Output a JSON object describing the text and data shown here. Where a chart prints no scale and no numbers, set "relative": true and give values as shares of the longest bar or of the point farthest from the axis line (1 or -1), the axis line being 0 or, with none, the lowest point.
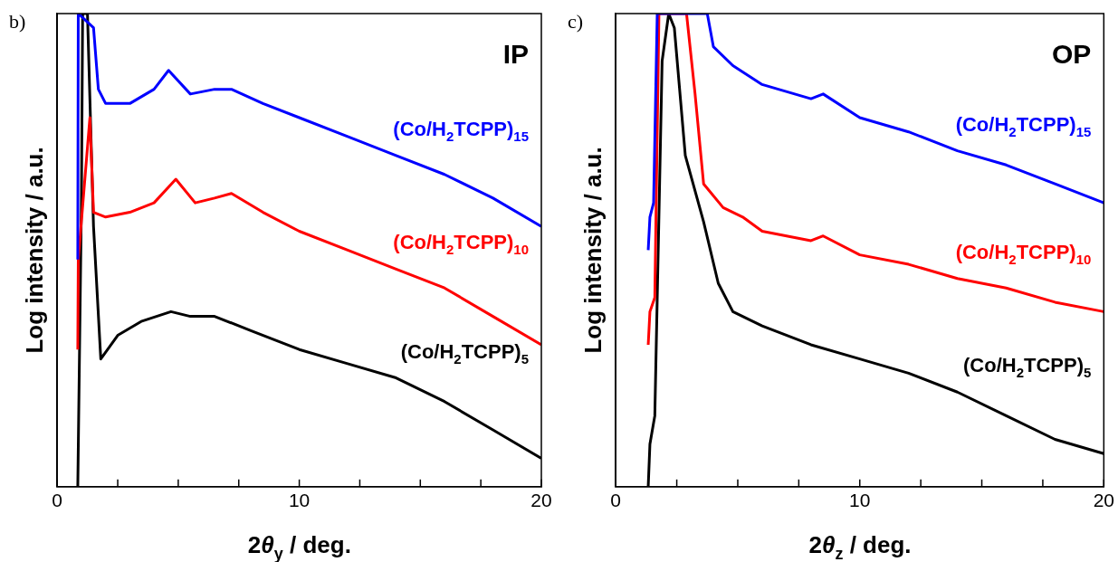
{
  "chart_data": [
    {
      "type": "line",
      "title": "IP",
      "annotations": [
        "b)"
      ],
      "xlabel": "2θ$_{y}$ / deg.",
      "ylabel": "Log intensity / a.u.",
      "relative": true,
      "xlim": [
        0,
        20
      ],
      "xticks": [
        0,
        {
          "value": 2.5,
          "label": null
        },
        {
          "value": 5,
          "label": null
        },
        {
          "value": 7.5,
          "label": null
        },
        10,
        {
          "value": 12.5,
          "label": null
        },
        {
          "value": 15,
          "label": null
        },
        {
          "value": 17.5,
          "label": null
        },
        20
      ],
      "series": [
        {
          "name": "(Co/H$_{2}$TCPP)$_{15}$",
          "color": "#0000ff",
          "x": [
            0.85,
            0.87,
            1.5,
            1.7,
            2,
            3,
            4,
            4.6,
            5.5,
            6.5,
            7.2,
            8.5,
            10,
            12,
            14,
            16,
            18,
            20
          ],
          "values": [
            0.48,
            1,
            0.97,
            0.84,
            0.81,
            0.81,
            0.84,
            0.88,
            0.83,
            0.84,
            0.84,
            0.81,
            0.78,
            0.74,
            0.7,
            0.66,
            0.61,
            0.55
          ]
        },
        {
          "name": "(Co/H$_{2}$TCPP)$_{10}$",
          "color": "#ff0000",
          "x": [
            0.85,
            0.87,
            1.35,
            1.5,
            2,
            3,
            4,
            4.9,
            5.7,
            6.5,
            7.2,
            8.5,
            10,
            12,
            14,
            16,
            18,
            20
          ],
          "values": [
            0.29,
            0.48,
            0.78,
            0.58,
            0.57,
            0.58,
            0.6,
            0.65,
            0.6,
            0.61,
            0.62,
            0.58,
            0.54,
            0.5,
            0.46,
            0.42,
            0.36,
            0.3
          ]
        },
        {
          "name": "(Co/H$_{2}$TCPP)$_{5}$",
          "color": "#000000",
          "x": [
            0.85,
            1.0,
            1.05,
            1.25,
            1.5,
            1.8,
            2.5,
            3.5,
            4.7,
            5.5,
            6.5,
            8,
            10,
            12,
            14,
            16,
            18,
            20
          ],
          "values": [
            0,
            0.6,
            1,
            1,
            0.55,
            0.27,
            0.32,
            0.35,
            0.37,
            0.36,
            0.36,
            0.33,
            0.29,
            0.26,
            0.23,
            0.18,
            0.12,
            0.06
          ]
        }
      ]
    },
    {
      "type": "line",
      "title": "OP",
      "annotations": [
        "c)"
      ],
      "xlabel": "2θ$_{z}$ / deg.",
      "ylabel": "Log intensity / a.u.",
      "relative": true,
      "xlim": [
        0,
        20
      ],
      "xticks": [
        0,
        {
          "value": 2.5,
          "label": null
        },
        {
          "value": 5,
          "label": null
        },
        {
          "value": 7.5,
          "label": null
        },
        10,
        {
          "value": 12.5,
          "label": null
        },
        {
          "value": 15,
          "label": null
        },
        {
          "value": 17.5,
          "label": null
        },
        20
      ],
      "series": [
        {
          "name": "(Co/H$_{2}$TCPP)$_{15}$",
          "color": "#0000ff",
          "x": [
            1.33,
            1.4,
            1.55,
            1.7,
            3.75,
            4.0,
            4.8,
            6,
            8,
            8.5,
            10,
            12,
            14,
            16,
            18,
            20
          ],
          "values": [
            0.5,
            0.57,
            0.6,
            1,
            1,
            0.93,
            0.89,
            0.85,
            0.82,
            0.83,
            0.78,
            0.75,
            0.71,
            0.68,
            0.64,
            0.6
          ]
        },
        {
          "name": "(Co/H$_{2}$TCPP)$_{10}$",
          "color": "#ff0000",
          "x": [
            1.33,
            1.4,
            1.6,
            1.77,
            2.9,
            3.25,
            3.6,
            4.4,
            5.2,
            6,
            8,
            8.5,
            10,
            12,
            14,
            16,
            18,
            20
          ],
          "values": [
            0.3,
            0.37,
            0.4,
            1,
            1,
            0.83,
            0.64,
            0.59,
            0.57,
            0.54,
            0.52,
            0.53,
            0.49,
            0.47,
            0.44,
            0.42,
            0.39,
            0.37
          ]
        },
        {
          "name": "(Co/H$_{2}$TCPP)$_{5}$",
          "color": "#000000",
          "x": [
            1.33,
            1.4,
            1.6,
            1.9,
            2.17,
            2.4,
            2.85,
            3.6,
            4.2,
            4.8,
            6,
            8,
            10,
            12,
            14,
            16,
            18,
            20
          ],
          "values": [
            0,
            0.09,
            0.15,
            0.9,
            1,
            0.97,
            0.7,
            0.56,
            0.43,
            0.37,
            0.34,
            0.3,
            0.27,
            0.24,
            0.2,
            0.15,
            0.1,
            0.07
          ]
        }
      ]
    }
  ]
}
